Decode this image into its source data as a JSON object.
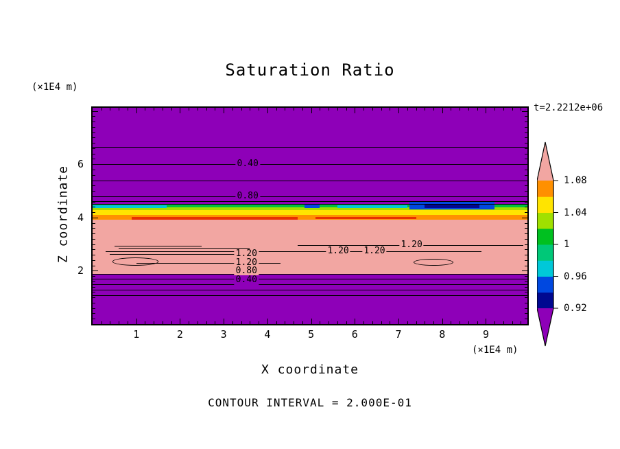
{
  "title": "Saturation Ratio",
  "time_label": "t=2.2212e+06",
  "axes": {
    "x_label": "X coordinate",
    "x_unit": "(×1E4 m)",
    "z_label": "Z coordinate",
    "z_unit": "(×1E4 m)"
  },
  "footer": "CONTOUR INTERVAL = 2.000E-01",
  "colorbar": {
    "labels_top_to_bottom": [
      "1.08",
      "1.04",
      "1",
      "0.96",
      "0.92"
    ],
    "point_top_color": "#F2A6A2",
    "point_bottom_color": "#8E00B8",
    "segment_colors_bottom_to_top": [
      "#000890",
      "#0048E0",
      "#00C8D8",
      "#00C878",
      "#00C020",
      "#A0E000",
      "#FFE400",
      "#FF9000"
    ]
  },
  "chart_data": {
    "type": "heatmap",
    "subtype": "filled-contour",
    "title": "Saturation Ratio",
    "xlabel": "X coordinate (×1E4 m)",
    "ylabel": "Z coordinate (×1E4 m)",
    "time_annotation": "t=2.2212e+06",
    "contour_interval": 0.2,
    "contour_interval_label": "CONTOUR INTERVAL = 2.000E-01",
    "xlim": [
      0,
      9.95
    ],
    "zlim": [
      0,
      8.12
    ],
    "x_ticks": [
      1,
      2,
      3,
      4,
      5,
      6,
      7,
      8,
      9
    ],
    "z_ticks": [
      2,
      4,
      6
    ],
    "minor_tick_step": 0.2,
    "color_scale_ticks": [
      0.92,
      0.96,
      1,
      1.04,
      1.08
    ],
    "background_color": "#8E00B8",
    "bands": [
      {
        "name": "green-stripe",
        "x": [
          0,
          9.95
        ],
        "z": [
          4.37,
          4.49
        ],
        "color": "#00C040"
      },
      {
        "name": "chartreuse-stripe",
        "x": [
          0,
          9.95
        ],
        "z": [
          4.28,
          4.37
        ],
        "color": "#A0E000"
      },
      {
        "name": "yellow-stripe",
        "x": [
          0,
          9.95
        ],
        "z": [
          4.1,
          4.28
        ],
        "color": "#FFE400"
      },
      {
        "name": "orange-stripe",
        "x": [
          0,
          9.95
        ],
        "z": [
          3.91,
          4.1
        ],
        "color": "#FF9000"
      },
      {
        "name": "red-patch-left",
        "x": [
          0.9,
          4.7
        ],
        "z": [
          3.93,
          4.03
        ],
        "color": "#E83000"
      },
      {
        "name": "red-patch-mid",
        "x": [
          5.1,
          7.4
        ],
        "z": [
          3.95,
          4.03
        ],
        "color": "#E83000"
      },
      {
        "name": "cyan-left",
        "x": [
          0,
          1.7
        ],
        "z": [
          4.36,
          4.45
        ],
        "color": "#00C8D8"
      },
      {
        "name": "cyan-mid",
        "x": [
          5.6,
          7.2
        ],
        "z": [
          4.36,
          4.45
        ],
        "color": "#00C8D8"
      },
      {
        "name": "blue-patch-right",
        "x": [
          7.25,
          9.2
        ],
        "z": [
          4.3,
          4.58
        ],
        "color": "#0048E0"
      },
      {
        "name": "navy-core-right",
        "x": [
          7.6,
          8.85
        ],
        "z": [
          4.36,
          4.52
        ],
        "color": "#000890"
      },
      {
        "name": "blue-dot",
        "x": [
          4.85,
          5.2
        ],
        "z": [
          4.36,
          4.49
        ],
        "color": "#0048E0"
      },
      {
        "name": "pink-region",
        "x": [
          0,
          9.95
        ],
        "z": [
          1.87,
          3.91
        ],
        "color": "#F2A6A2"
      }
    ],
    "contour_lines": [
      {
        "z": 6.65,
        "x": [
          0,
          9.95
        ]
      },
      {
        "z": 6.0,
        "x": [
          0,
          9.95
        ]
      },
      {
        "z": 5.39,
        "x": [
          0,
          9.95
        ]
      },
      {
        "z": 4.79,
        "x": [
          0,
          9.95
        ]
      },
      {
        "z": 4.61,
        "x": [
          0,
          9.95
        ]
      },
      {
        "z": 4.5,
        "x": [
          0,
          9.95
        ]
      },
      {
        "z": 2.97,
        "x": [
          4.7,
          9.85
        ]
      },
      {
        "z": 2.95,
        "x": [
          0.5,
          2.5
        ]
      },
      {
        "z": 2.86,
        "x": [
          0.6,
          3.6
        ]
      },
      {
        "z": 2.73,
        "x": [
          0.3,
          8.9
        ]
      },
      {
        "z": 2.63,
        "x": [
          0.4,
          3.3
        ]
      },
      {
        "z": 2.3,
        "x": [
          1.0,
          4.3
        ]
      },
      {
        "z": 1.87,
        "x": [
          0,
          9.95
        ]
      },
      {
        "z": 1.7,
        "x": [
          0,
          9.95
        ]
      },
      {
        "z": 1.49,
        "x": [
          0,
          9.95
        ]
      },
      {
        "z": 1.29,
        "x": [
          0,
          9.95
        ]
      },
      {
        "z": 1.08,
        "x": [
          0,
          9.95
        ]
      }
    ],
    "contour_ellipses": [
      {
        "x": [
          0.45,
          1.5
        ],
        "z": [
          2.2,
          2.5
        ]
      },
      {
        "x": [
          7.35,
          8.25
        ],
        "z": [
          2.19,
          2.45
        ]
      }
    ],
    "contour_labels": [
      {
        "text": "0.40",
        "x": 3.55,
        "z": 6.0,
        "bg": "#8E00B8"
      },
      {
        "text": "0.80",
        "x": 3.55,
        "z": 4.79,
        "bg": "#8E00B8"
      },
      {
        "text": "1.20",
        "x": 7.3,
        "z": 2.97,
        "bg": "#F2A6A2"
      },
      {
        "text": "1.20",
        "x": 5.62,
        "z": 2.73,
        "bg": "#F2A6A2"
      },
      {
        "text": "1.20",
        "x": 6.45,
        "z": 2.73,
        "bg": "#F2A6A2"
      },
      {
        "text": "1.20",
        "x": 3.52,
        "z": 2.63,
        "bg": "#F2A6A2"
      },
      {
        "text": "1.20",
        "x": 3.52,
        "z": 2.3,
        "bg": "#F2A6A2"
      },
      {
        "text": "0.80",
        "x": 3.52,
        "z": 1.99,
        "bg": "#F2A6A2"
      },
      {
        "text": "0.40",
        "x": 3.52,
        "z": 1.65,
        "bg": "#8E00B8"
      }
    ]
  }
}
